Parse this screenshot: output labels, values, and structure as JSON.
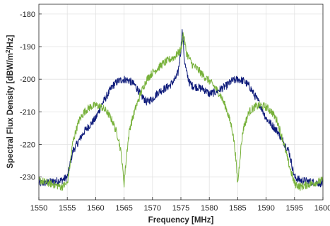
{
  "chart_data": {
    "type": "line",
    "title": "",
    "xlabel": "Frequency [MHz]",
    "ylabel_main": "Spectral Flux Density [dBW/m",
    "ylabel_sup": "2",
    "ylabel_end": "/Hz]",
    "xlim": [
      1550,
      1600
    ],
    "ylim": [
      -237,
      -177
    ],
    "x_ticks": [
      1550,
      1555,
      1560,
      1565,
      1570,
      1575,
      1580,
      1585,
      1590,
      1595,
      1600
    ],
    "y_ticks": [
      -180,
      -190,
      -200,
      -210,
      -220,
      -230
    ],
    "x_tick_labels": [
      "1550",
      "1555",
      "1560",
      "1565",
      "1570",
      "1575",
      "1580",
      "1585",
      "1590",
      "1595",
      "1600"
    ],
    "y_tick_labels": [
      "-180",
      "-190",
      "-200",
      "-210",
      "-220",
      "-230"
    ],
    "grid": true,
    "series": [
      {
        "color": "#0d1a7a",
        "x": [
          1550,
          1552,
          1554,
          1555,
          1555.5,
          1556,
          1557,
          1558,
          1559,
          1560,
          1561,
          1562,
          1563,
          1564,
          1565,
          1566,
          1567,
          1568,
          1569,
          1570,
          1571,
          1572,
          1573,
          1574,
          1574.5,
          1575,
          1575.2,
          1575.4,
          1575.6,
          1576,
          1576.5,
          1577,
          1578,
          1579,
          1580,
          1581,
          1582,
          1583,
          1584,
          1585,
          1586,
          1587,
          1588,
          1589,
          1590,
          1591,
          1592,
          1593,
          1594,
          1594.5,
          1595,
          1596,
          1598,
          1600
        ],
        "y": [
          -232,
          -231.5,
          -231,
          -230,
          -226,
          -222,
          -219,
          -216,
          -214,
          -212,
          -208,
          -205,
          -202,
          -200.5,
          -200,
          -200.5,
          -202,
          -205,
          -207,
          -206,
          -204,
          -203,
          -202,
          -200,
          -198,
          -191,
          -185,
          -188,
          -194,
          -198,
          -201,
          -202,
          -202.5,
          -203,
          -204.5,
          -204,
          -203,
          -202,
          -200.5,
          -200,
          -200.5,
          -202,
          -205,
          -208,
          -212,
          -214,
          -216,
          -219,
          -222,
          -226,
          -230,
          -231,
          -231.5,
          -232
        ]
      },
      {
        "color": "#77b13a",
        "x": [
          1550,
          1552,
          1554,
          1555,
          1555.5,
          1556,
          1557,
          1558,
          1559,
          1560,
          1561,
          1562,
          1563,
          1564,
          1564.5,
          1565,
          1565.5,
          1566,
          1567,
          1568,
          1569,
          1570,
          1571,
          1572,
          1573,
          1574,
          1575,
          1575.4,
          1576,
          1577,
          1578,
          1579,
          1580,
          1581,
          1582,
          1583,
          1584,
          1584.5,
          1585,
          1585.5,
          1586,
          1587,
          1588,
          1589,
          1590,
          1591,
          1592,
          1593,
          1594,
          1595,
          1596,
          1598,
          1600
        ],
        "y": [
          -231,
          -232,
          -233,
          -232,
          -226,
          -219,
          -213,
          -210,
          -208.5,
          -208,
          -208.5,
          -210,
          -213,
          -218,
          -223,
          -232,
          -222,
          -215,
          -209,
          -204,
          -200,
          -198,
          -196.5,
          -195,
          -194,
          -193,
          -191,
          -186,
          -192,
          -195.5,
          -197,
          -199,
          -200.5,
          -202.5,
          -205,
          -209,
          -215,
          -221,
          -232,
          -222,
          -215,
          -210,
          -208.5,
          -208,
          -208.5,
          -210,
          -213,
          -219,
          -226,
          -232,
          -233,
          -232,
          -231
        ]
      }
    ]
  }
}
